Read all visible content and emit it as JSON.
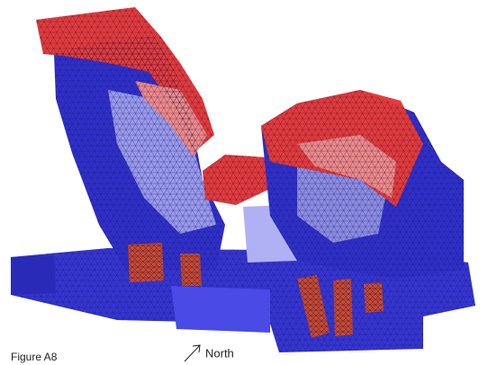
{
  "caption": "Figure A8",
  "compass": {
    "label": "North"
  }
}
